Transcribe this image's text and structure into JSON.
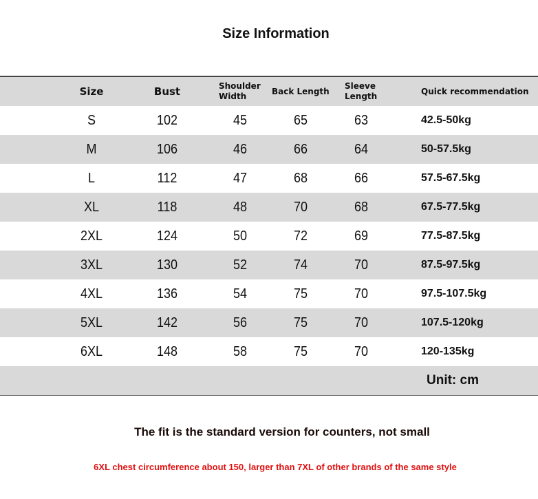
{
  "title": "Size Information",
  "headers": [
    "Size",
    "Bust",
    "Shoulder Width",
    "Back Length",
    "Sleeve Length",
    "Quick recommendation"
  ],
  "rows": [
    [
      "S",
      "102",
      "45",
      "65",
      "63",
      "42.5-50kg"
    ],
    [
      "M",
      "106",
      "46",
      "66",
      "64",
      "50-57.5kg"
    ],
    [
      "L",
      "112",
      "47",
      "68",
      "66",
      "57.5-67.5kg"
    ],
    [
      "XL",
      "118",
      "48",
      "70",
      "68",
      "67.5-77.5kg"
    ],
    [
      "2XL",
      "124",
      "50",
      "72",
      "69",
      "77.5-87.5kg"
    ],
    [
      "3XL",
      "130",
      "52",
      "74",
      "70",
      "87.5-97.5kg"
    ],
    [
      "4XL",
      "136",
      "54",
      "75",
      "70",
      "97.5-107.5kg"
    ],
    [
      "5XL",
      "142",
      "56",
      "75",
      "70",
      "107.5-120kg"
    ],
    [
      "6XL",
      "148",
      "58",
      "75",
      "70",
      "120-135kg"
    ]
  ],
  "unit": "Unit: cm",
  "note_fit": "The fit is the standard version for counters, not small",
  "note_size": "6XL chest circumference about 150, larger than 7XL of other brands of the same style",
  "colors": {
    "row_gray": "#d9d9d9",
    "note_red": "#e01010"
  }
}
